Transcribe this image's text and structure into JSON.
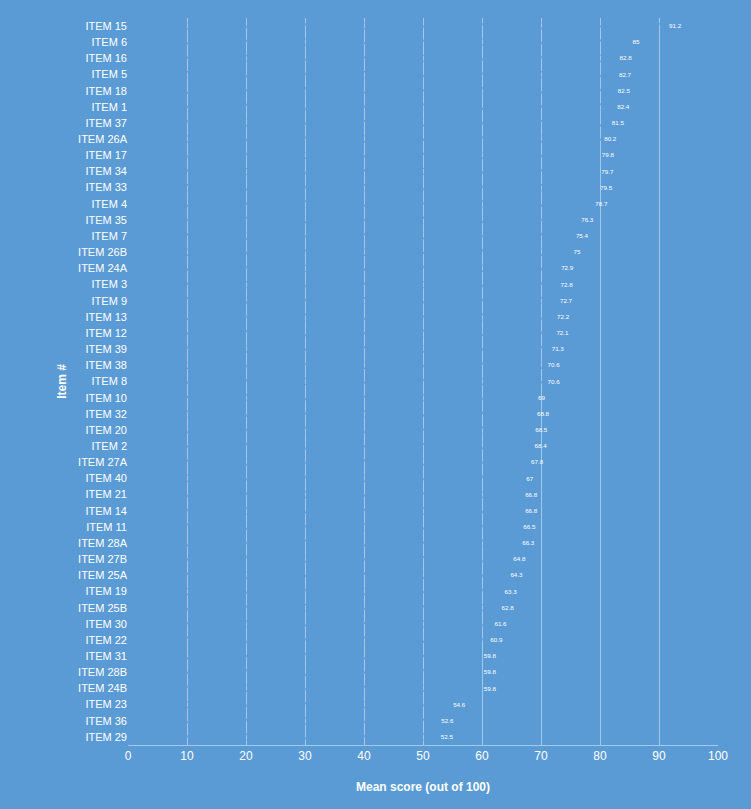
{
  "chart_data": {
    "type": "bar",
    "orientation": "horizontal",
    "x_label": "Mean score (out of 100)",
    "y_label": "Item #",
    "categories": [
      "ITEM 15",
      "ITEM 6",
      "ITEM 16",
      "ITEM 5",
      "ITEM 18",
      "ITEM 1",
      "ITEM 37",
      "ITEM 26A",
      "ITEM 17",
      "ITEM 34",
      "ITEM 33",
      "ITEM 4",
      "ITEM 35",
      "ITEM 7",
      "ITEM 26B",
      "ITEM 24A",
      "ITEM 3",
      "ITEM 9",
      "ITEM 13",
      "ITEM 12",
      "ITEM 39",
      "ITEM 38",
      "ITEM 8",
      "ITEM 10",
      "ITEM 32",
      "ITEM 20",
      "ITEM 2",
      "ITEM 27A",
      "ITEM 40",
      "ITEM 21",
      "ITEM 14",
      "ITEM 11",
      "ITEM 28A",
      "ITEM 27B",
      "ITEM 25A",
      "ITEM 19",
      "ITEM 25B",
      "ITEM 30",
      "ITEM 22",
      "ITEM 31",
      "ITEM 28B",
      "ITEM 24B",
      "ITEM 23",
      "ITEM 36",
      "ITEM 29"
    ],
    "values": [
      91.2,
      85,
      82.8,
      82.7,
      82.5,
      82.4,
      81.5,
      80.2,
      79.8,
      79.7,
      79.5,
      78.7,
      76.3,
      75.4,
      75,
      72.9,
      72.8,
      72.7,
      72.2,
      72.1,
      71.3,
      70.6,
      70.6,
      69,
      68.8,
      68.5,
      68.4,
      67.8,
      67,
      66.8,
      66.8,
      66.5,
      66.3,
      64.8,
      64.3,
      63.3,
      62.8,
      61.6,
      60.9,
      59.8,
      59.8,
      59.8,
      54.6,
      52.6,
      52.5
    ],
    "color": "#ffffff",
    "xlim": [
      0,
      100
    ],
    "xticks": [
      0,
      10,
      20,
      30,
      40,
      50,
      60,
      70,
      80,
      90,
      100
    ],
    "grid": true,
    "data_labels": true
  }
}
